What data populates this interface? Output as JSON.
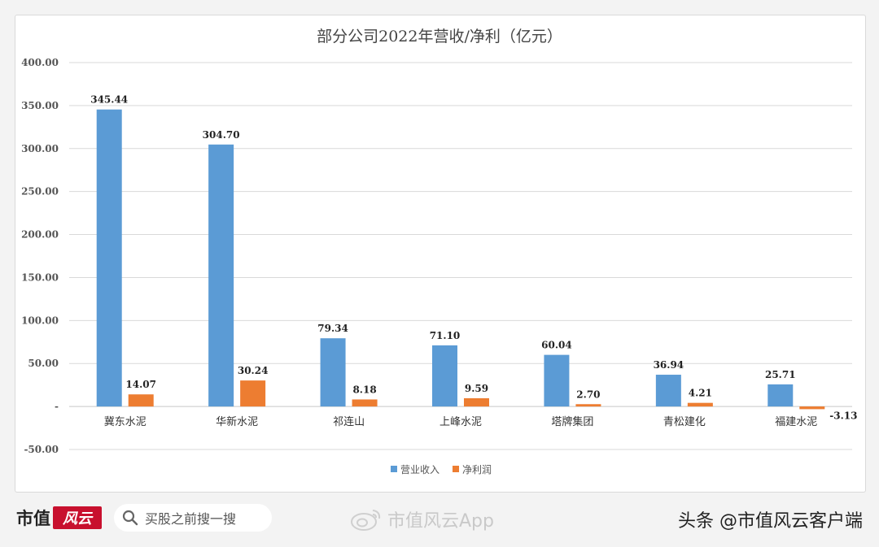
{
  "chart_data": {
    "type": "bar",
    "title": "部分公司2022年营收/净利（亿元）",
    "categories": [
      "冀东水泥",
      "华新水泥",
      "祁连山",
      "上峰水泥",
      "塔牌集团",
      "青松建化",
      "福建水泥"
    ],
    "series": [
      {
        "name": "营业收入",
        "color": "#5b9bd5",
        "values": [
          345.44,
          304.7,
          79.34,
          71.1,
          60.04,
          36.94,
          25.71
        ],
        "labels": [
          "345.44",
          "304.70",
          "79.34",
          "71.10",
          "60.04",
          "36.94",
          "25.71"
        ]
      },
      {
        "name": "净利润",
        "color": "#ed7d31",
        "values": [
          14.07,
          30.24,
          8.18,
          9.59,
          2.7,
          4.21,
          -3.13
        ],
        "labels": [
          "14.07",
          "30.24",
          "8.18",
          "9.59",
          "2.70",
          "4.21",
          "-3.13"
        ]
      }
    ],
    "ylim": [
      -50,
      400
    ],
    "yticks": [
      400,
      350,
      300,
      250,
      200,
      150,
      100,
      50,
      0,
      -50
    ],
    "ytick_labels": [
      "400.00",
      "350.00",
      "300.00",
      "250.00",
      "200.00",
      "150.00",
      "100.00",
      "50.00",
      "-",
      "-50.00"
    ],
    "grid": true,
    "legend": "bottom"
  },
  "footer": {
    "brand_text": "市值",
    "brand_logo_text": "风云",
    "search_text": "买股之前搜一搜",
    "weibo_text": "市值风云App",
    "toutiao_text": "头条 @市值风云客户端",
    "icons": [
      "search-icon",
      "weibo-icon"
    ]
  }
}
